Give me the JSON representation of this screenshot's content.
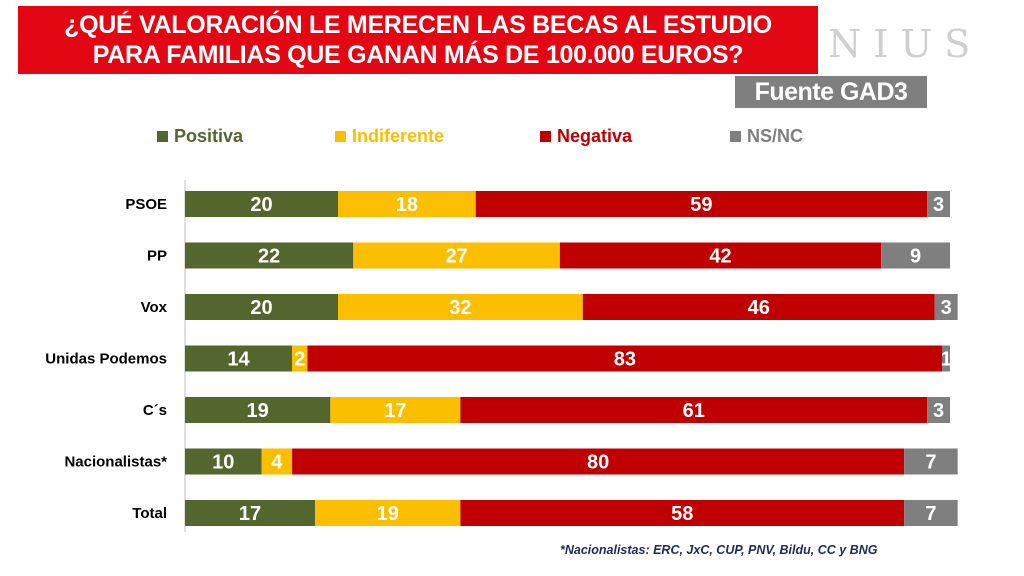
{
  "title": {
    "line1": "¿QUÉ VALORACIÓN LE MERECEN LAS BECAS AL ESTUDIO",
    "line2": "PARA FAMILIAS QUE GANAN MÁS DE 100.000 EUROS?"
  },
  "logo": "NIUS",
  "source": "Fuente GAD3",
  "footnote": "*Nacionalistas: ERC, JxC, CUP, PNV, Bildu, CC y BNG",
  "chart_data": {
    "type": "bar",
    "orientation": "horizontal",
    "stacked": true,
    "title": "¿QUÉ VALORACIÓN LE MERECEN LAS BECAS AL ESTUDIO PARA FAMILIAS QUE GANAN MÁS DE 100.000 EUROS?",
    "xlabel": "",
    "ylabel": "",
    "xlim": [
      0,
      100
    ],
    "legend_position": "top",
    "categories": [
      "PSOE",
      "PP",
      "Vox",
      "Unidas Podemos",
      "C´s",
      "Nacionalistas*",
      "Total"
    ],
    "series": [
      {
        "name": "Positiva",
        "color": "#53662e",
        "values": [
          20,
          22,
          20,
          14,
          19,
          10,
          17
        ]
      },
      {
        "name": "Indiferente",
        "color": "#fbbf00",
        "values": [
          18,
          27,
          32,
          2,
          17,
          4,
          19
        ]
      },
      {
        "name": "Negativa",
        "color": "#c00000",
        "values": [
          59,
          42,
          46,
          83,
          61,
          80,
          58
        ]
      },
      {
        "name": "NS/NC",
        "color": "#7f7f7f",
        "values": [
          3,
          9,
          3,
          1,
          3,
          7,
          7
        ]
      }
    ]
  }
}
